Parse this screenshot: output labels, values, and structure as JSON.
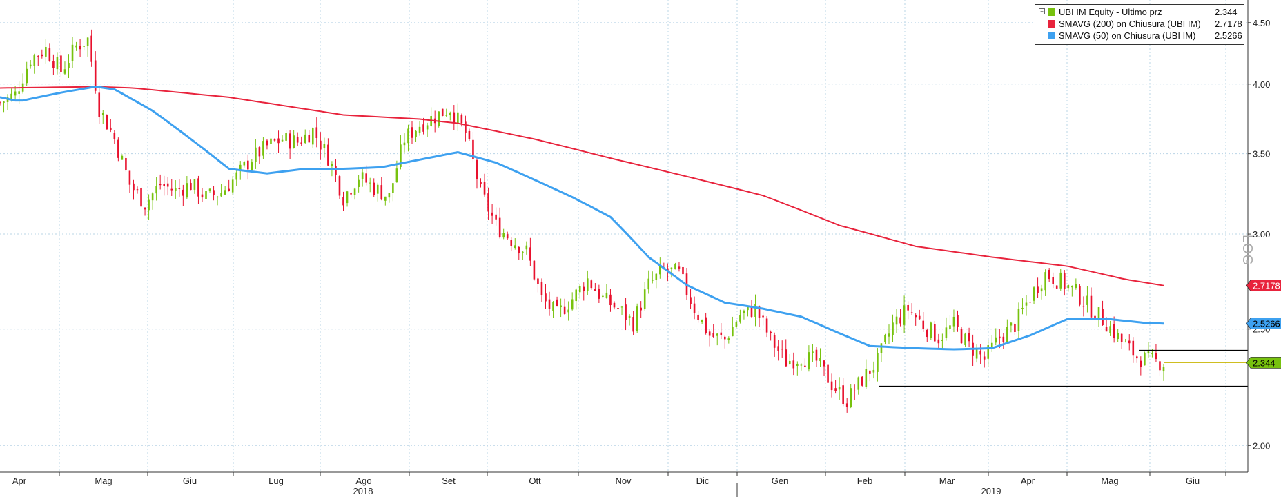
{
  "chart_data": {
    "type": "candlestick-line",
    "scale": "log",
    "scale_label": "LOG",
    "ylim": [
      1.9,
      4.7
    ],
    "y_ticks": [
      {
        "value": 4.5,
        "label": "4.50"
      },
      {
        "value": 4.0,
        "label": "4.00"
      },
      {
        "value": 3.5,
        "label": "3.50"
      },
      {
        "value": 3.0,
        "label": "3.00"
      },
      {
        "value": 2.5,
        "label": "2.50"
      },
      {
        "value": 2.0,
        "label": "2.00"
      }
    ],
    "x_months": [
      "Apr",
      "Mag",
      "Giu",
      "Lug",
      "Ago",
      "Set",
      "Ott",
      "Nov",
      "Dic",
      "Gen",
      "Feb",
      "Mar",
      "Apr",
      "Mag",
      "Giu"
    ],
    "x_years": [
      "2018",
      "2019"
    ],
    "legend": [
      {
        "label": "UBI IM Equity - Ultimo prz",
        "value": "2.344",
        "color": "#77c20e"
      },
      {
        "label": "SMAVG (200)  on Chiusura (UBI IM)",
        "value": "2.7178",
        "color": "#e8233c"
      },
      {
        "label": "SMAVG (50)  on Chiusura (UBI IM)",
        "value": "2.5266",
        "color": "#3ea1f0"
      }
    ],
    "last_values": [
      {
        "label": "2.7178",
        "value": 2.7178,
        "color": "#e8233c",
        "text_color": "#ffffff"
      },
      {
        "label": "2.5266",
        "value": 2.5266,
        "color": "#3ea1f0",
        "text_color": "#000000"
      },
      {
        "label": "2.344",
        "value": 2.344,
        "color": "#77c20e",
        "text_color": "#000000"
      }
    ],
    "support_lines": [
      2.4,
      2.24
    ],
    "price_path": [
      [
        0,
        3.86
      ],
      [
        4,
        3.92
      ],
      [
        8,
        4.2
      ],
      [
        12,
        4.28
      ],
      [
        16,
        4.1
      ],
      [
        20,
        4.3
      ],
      [
        23,
        4.36
      ],
      [
        26,
        3.82
      ],
      [
        30,
        3.6
      ],
      [
        34,
        3.3
      ],
      [
        38,
        3.18
      ],
      [
        42,
        3.3
      ],
      [
        46,
        3.26
      ],
      [
        50,
        3.3
      ],
      [
        54,
        3.22
      ],
      [
        58,
        3.25
      ],
      [
        62,
        3.35
      ],
      [
        66,
        3.47
      ],
      [
        70,
        3.55
      ],
      [
        74,
        3.6
      ],
      [
        78,
        3.58
      ],
      [
        82,
        3.66
      ],
      [
        86,
        3.48
      ],
      [
        90,
        3.22
      ],
      [
        94,
        3.35
      ],
      [
        98,
        3.28
      ],
      [
        102,
        3.22
      ],
      [
        106,
        3.6
      ],
      [
        110,
        3.7
      ],
      [
        114,
        3.76
      ],
      [
        118,
        3.82
      ],
      [
        122,
        3.64
      ],
      [
        126,
        3.25
      ],
      [
        130,
        3.05
      ],
      [
        134,
        2.97
      ],
      [
        138,
        2.9
      ],
      [
        142,
        2.65
      ],
      [
        146,
        2.57
      ],
      [
        150,
        2.65
      ],
      [
        154,
        2.75
      ],
      [
        158,
        2.65
      ],
      [
        162,
        2.6
      ],
      [
        166,
        2.53
      ],
      [
        170,
        2.72
      ],
      [
        174,
        2.8
      ],
      [
        178,
        2.78
      ],
      [
        182,
        2.6
      ],
      [
        186,
        2.47
      ],
      [
        190,
        2.45
      ],
      [
        194,
        2.57
      ],
      [
        198,
        2.6
      ],
      [
        202,
        2.45
      ],
      [
        206,
        2.35
      ],
      [
        210,
        2.37
      ],
      [
        214,
        2.35
      ],
      [
        218,
        2.25
      ],
      [
        222,
        2.18
      ],
      [
        226,
        2.27
      ],
      [
        230,
        2.35
      ],
      [
        234,
        2.52
      ],
      [
        238,
        2.6
      ],
      [
        242,
        2.52
      ],
      [
        246,
        2.46
      ],
      [
        250,
        2.52
      ],
      [
        254,
        2.42
      ],
      [
        258,
        2.36
      ],
      [
        262,
        2.46
      ],
      [
        266,
        2.52
      ],
      [
        270,
        2.66
      ],
      [
        274,
        2.78
      ],
      [
        278,
        2.74
      ],
      [
        282,
        2.68
      ],
      [
        286,
        2.6
      ],
      [
        290,
        2.53
      ],
      [
        294,
        2.44
      ],
      [
        298,
        2.37
      ],
      [
        302,
        2.35
      ],
      [
        305,
        2.344
      ]
    ],
    "sma200_path": [
      [
        0,
        3.97
      ],
      [
        25,
        3.98
      ],
      [
        35,
        3.97
      ],
      [
        60,
        3.9
      ],
      [
        90,
        3.77
      ],
      [
        110,
        3.74
      ],
      [
        120,
        3.71
      ],
      [
        140,
        3.6
      ],
      [
        160,
        3.47
      ],
      [
        180,
        3.35
      ],
      [
        200,
        3.23
      ],
      [
        220,
        3.05
      ],
      [
        240,
        2.93
      ],
      [
        260,
        2.87
      ],
      [
        280,
        2.82
      ],
      [
        295,
        2.75
      ],
      [
        305,
        2.7178
      ]
    ],
    "sma50_path": [
      [
        0,
        3.9
      ],
      [
        5,
        3.87
      ],
      [
        15,
        3.93
      ],
      [
        25,
        3.98
      ],
      [
        30,
        3.96
      ],
      [
        40,
        3.8
      ],
      [
        50,
        3.6
      ],
      [
        60,
        3.4
      ],
      [
        70,
        3.37
      ],
      [
        80,
        3.4
      ],
      [
        90,
        3.4
      ],
      [
        100,
        3.41
      ],
      [
        110,
        3.46
      ],
      [
        120,
        3.51
      ],
      [
        130,
        3.44
      ],
      [
        140,
        3.33
      ],
      [
        150,
        3.22
      ],
      [
        160,
        3.1
      ],
      [
        170,
        2.87
      ],
      [
        180,
        2.72
      ],
      [
        190,
        2.63
      ],
      [
        200,
        2.6
      ],
      [
        210,
        2.56
      ],
      [
        220,
        2.48
      ],
      [
        228,
        2.42
      ],
      [
        240,
        2.41
      ],
      [
        250,
        2.405
      ],
      [
        260,
        2.41
      ],
      [
        270,
        2.47
      ],
      [
        280,
        2.55
      ],
      [
        290,
        2.55
      ],
      [
        300,
        2.53
      ],
      [
        305,
        2.5266
      ]
    ]
  }
}
